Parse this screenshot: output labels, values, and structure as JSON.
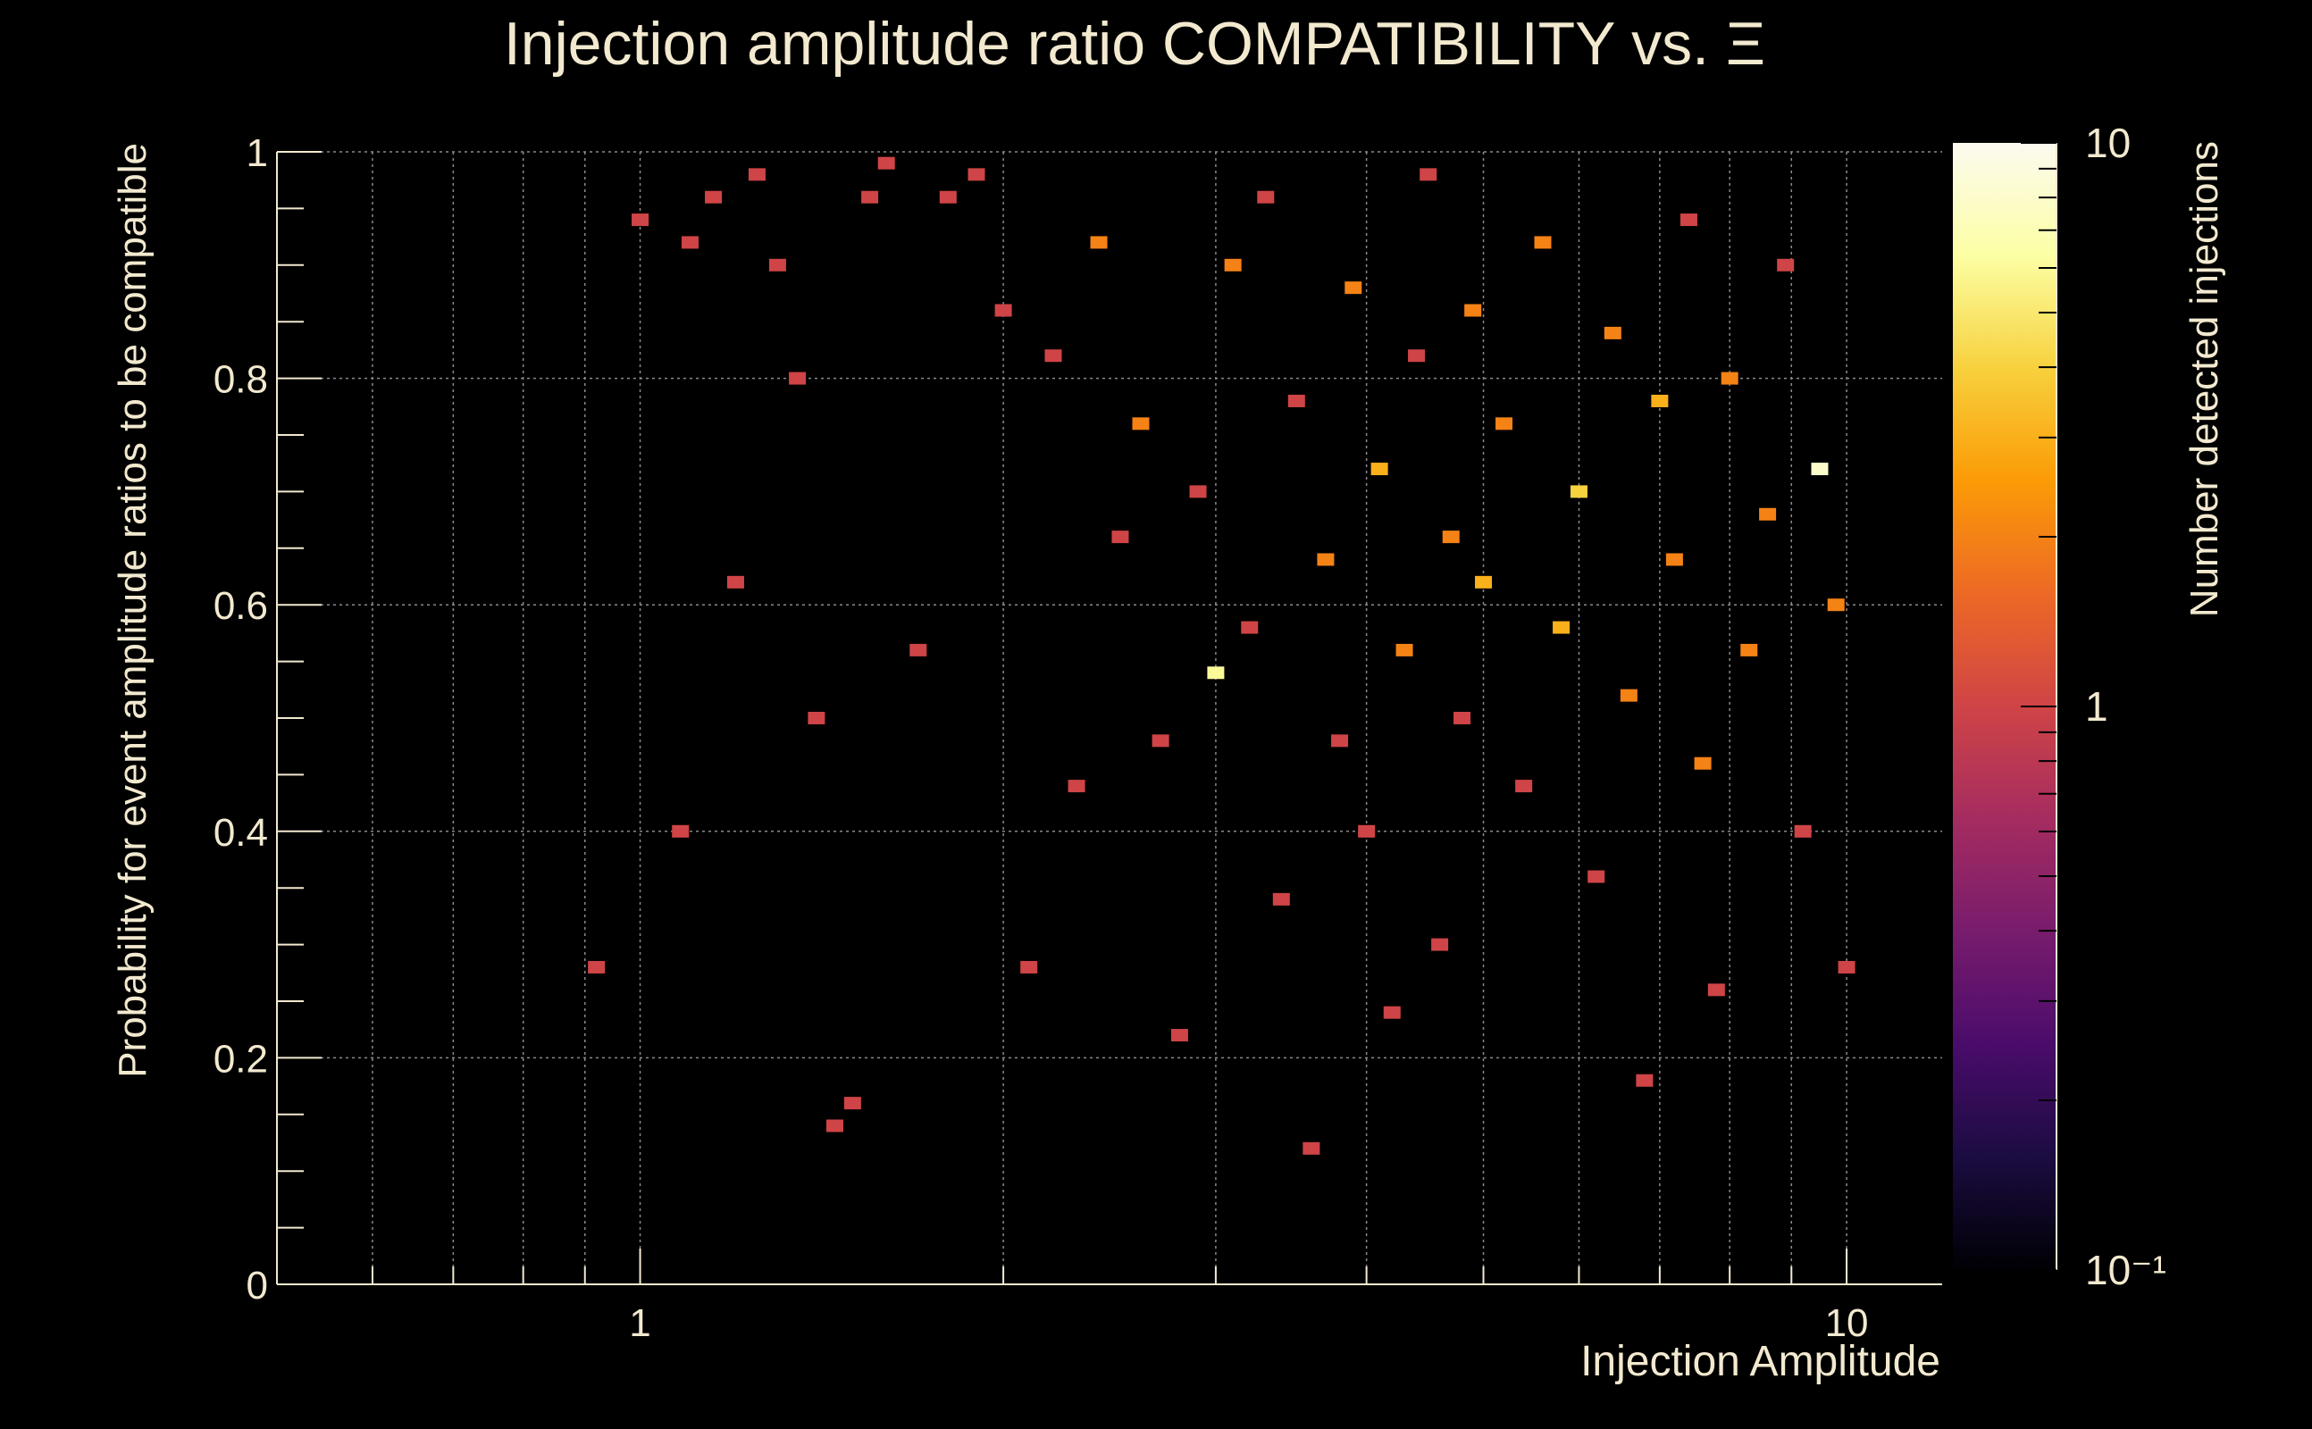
{
  "chart_data": {
    "type": "heatmap",
    "title": "Injection amplitude ratio COMPATIBILITY vs.  Ξ",
    "xlabel": "Injection Amplitude",
    "ylabel": "Probability for event amplitude ratios to be compatible",
    "zlabel": "Number detected injections",
    "x_scale": "log",
    "xlim": [
      0.5,
      12
    ],
    "ylim": [
      0,
      1
    ],
    "x_tick_labels": [
      {
        "value": 1,
        "label": "1"
      },
      {
        "value": 10,
        "label": "10"
      }
    ],
    "y_tick_labels": [
      {
        "value": 0,
        "label": "0"
      },
      {
        "value": 0.2,
        "label": "0.2"
      },
      {
        "value": 0.4,
        "label": "0.4"
      },
      {
        "value": 0.6,
        "label": "0.6"
      },
      {
        "value": 0.8,
        "label": "0.8"
      },
      {
        "value": 1,
        "label": "1"
      }
    ],
    "z_scale": "log",
    "zlim": [
      0.1,
      10
    ],
    "z_tick_labels": [
      {
        "value": 10,
        "label": "10"
      },
      {
        "value": 1,
        "label": "1"
      },
      {
        "value": 0.1,
        "label": "10⁻¹"
      }
    ],
    "colormap": [
      "#000004",
      "#1b0c41",
      "#4a0c6b",
      "#781c6d",
      "#a52c60",
      "#cf4446",
      "#ed6925",
      "#fb9b06",
      "#f7d13d",
      "#fcffa4",
      "#fcfaf0"
    ],
    "grid": true,
    "legend": "right",
    "cells": [
      [
        0.92,
        0.28,
        1
      ],
      [
        1.0,
        0.94,
        1
      ],
      [
        1.08,
        0.4,
        1
      ],
      [
        1.1,
        0.92,
        1
      ],
      [
        1.15,
        0.96,
        1
      ],
      [
        1.2,
        0.62,
        1
      ],
      [
        1.25,
        0.98,
        1
      ],
      [
        1.3,
        0.9,
        1
      ],
      [
        1.35,
        0.8,
        1
      ],
      [
        1.4,
        0.5,
        1
      ],
      [
        1.45,
        0.14,
        1
      ],
      [
        1.5,
        0.16,
        1
      ],
      [
        1.55,
        0.96,
        1
      ],
      [
        1.6,
        0.99,
        1
      ],
      [
        1.7,
        0.56,
        1
      ],
      [
        1.8,
        0.96,
        1
      ],
      [
        1.9,
        0.98,
        1
      ],
      [
        2.0,
        0.86,
        1
      ],
      [
        2.1,
        0.28,
        1
      ],
      [
        2.2,
        0.82,
        1
      ],
      [
        2.3,
        0.44,
        1
      ],
      [
        2.4,
        0.92,
        2
      ],
      [
        2.5,
        0.66,
        1
      ],
      [
        2.6,
        0.76,
        2
      ],
      [
        2.7,
        0.48,
        1
      ],
      [
        2.8,
        0.22,
        1
      ],
      [
        2.9,
        0.7,
        1
      ],
      [
        3.0,
        0.54,
        6
      ],
      [
        3.1,
        0.9,
        2
      ],
      [
        3.2,
        0.58,
        1
      ],
      [
        3.3,
        0.96,
        1
      ],
      [
        3.4,
        0.34,
        1
      ],
      [
        3.5,
        0.78,
        1
      ],
      [
        3.6,
        0.12,
        1
      ],
      [
        3.7,
        0.64,
        2
      ],
      [
        3.8,
        0.48,
        1
      ],
      [
        3.9,
        0.88,
        2
      ],
      [
        4.0,
        0.4,
        1
      ],
      [
        4.1,
        0.72,
        3
      ],
      [
        4.2,
        0.24,
        1
      ],
      [
        4.3,
        0.56,
        2
      ],
      [
        4.4,
        0.82,
        1
      ],
      [
        4.5,
        0.98,
        1
      ],
      [
        4.6,
        0.3,
        1
      ],
      [
        4.7,
        0.66,
        2
      ],
      [
        4.8,
        0.5,
        1
      ],
      [
        4.9,
        0.86,
        2
      ],
      [
        5.0,
        0.62,
        3
      ],
      [
        5.2,
        0.76,
        2
      ],
      [
        5.4,
        0.44,
        1
      ],
      [
        5.6,
        0.92,
        2
      ],
      [
        5.8,
        0.58,
        3
      ],
      [
        6.0,
        0.7,
        4
      ],
      [
        6.2,
        0.36,
        1
      ],
      [
        6.4,
        0.84,
        2
      ],
      [
        6.6,
        0.52,
        2
      ],
      [
        6.8,
        0.18,
        1
      ],
      [
        7.0,
        0.78,
        3
      ],
      [
        7.2,
        0.64,
        2
      ],
      [
        7.4,
        0.94,
        1
      ],
      [
        7.6,
        0.46,
        2
      ],
      [
        7.8,
        0.26,
        1
      ],
      [
        8.0,
        0.8,
        2
      ],
      [
        8.3,
        0.56,
        2
      ],
      [
        8.6,
        0.68,
        2
      ],
      [
        8.9,
        0.9,
        1
      ],
      [
        9.2,
        0.4,
        1
      ],
      [
        9.5,
        0.72,
        8
      ],
      [
        9.8,
        0.6,
        2
      ],
      [
        10.0,
        0.28,
        1
      ]
    ]
  }
}
